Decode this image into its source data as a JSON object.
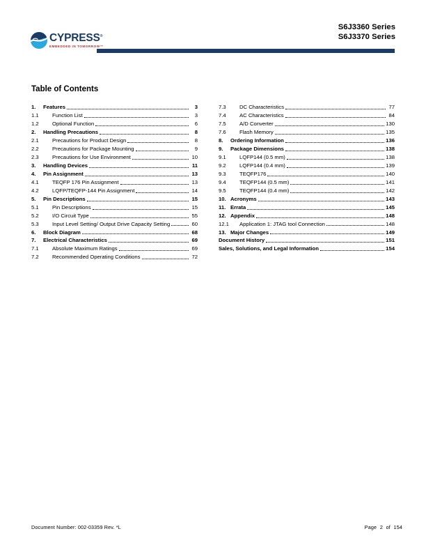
{
  "header": {
    "logo": {
      "brand": "CYPRESS",
      "registered": "®",
      "tagline": "EMBEDDED IN TOMORROW™"
    },
    "series": [
      "S6J3360 Series",
      "S6J3370 Series"
    ]
  },
  "title": "Table of Contents",
  "toc": {
    "left": [
      {
        "num": "1.",
        "label": "Features",
        "page": "3",
        "bold": true
      },
      {
        "num": "1.1",
        "label": "Function List",
        "page": "3",
        "sub": true
      },
      {
        "num": "1.2",
        "label": "Optional Function",
        "page": "6",
        "sub": true
      },
      {
        "num": "2.",
        "label": "Handling Precautions",
        "page": "8",
        "bold": true
      },
      {
        "num": "2.1",
        "label": "Precautions for Product Design",
        "page": "8",
        "sub": true
      },
      {
        "num": "2.2",
        "label": "Precautions for Package Mounting",
        "page": "9",
        "sub": true
      },
      {
        "num": "2.3",
        "label": "Precautions for Use Environment",
        "page": "10",
        "sub": true
      },
      {
        "num": "3.",
        "label": "Handling Devices",
        "page": "11",
        "bold": true
      },
      {
        "num": "4.",
        "label": "Pin Assignment",
        "page": "13",
        "bold": true
      },
      {
        "num": "4.1",
        "label": "TEQFP 176 Pin Assignment",
        "page": "13",
        "sub": true
      },
      {
        "num": "4.2",
        "label": "LQFP/TEQFP-144 Pin Assignment",
        "page": "14",
        "sub": true
      },
      {
        "num": "5.",
        "label": "Pin Descriptions",
        "page": "15",
        "bold": true
      },
      {
        "num": "5.1",
        "label": "Pin Descriptions",
        "page": "15",
        "sub": true
      },
      {
        "num": "5.2",
        "label": "I/O Circuit Type",
        "page": "55",
        "sub": true
      },
      {
        "num": "5.3",
        "label": "Input Level Setting/ Output Drive Capacity Setting",
        "page": "60",
        "sub": true
      },
      {
        "num": "6.",
        "label": "Block Diagram",
        "page": "68",
        "bold": true
      },
      {
        "num": "7.",
        "label": "Electrical Characteristics",
        "page": "69",
        "bold": true
      },
      {
        "num": "7.1",
        "label": "Absolute Maximum Ratings",
        "page": "69",
        "sub": true
      },
      {
        "num": "7.2",
        "label": "Recommended Operating Conditions",
        "page": "72",
        "sub": true
      }
    ],
    "right": [
      {
        "num": "7.3",
        "label": "DC Characteristics",
        "page": "77",
        "sub": true
      },
      {
        "num": "7.4",
        "label": "AC Characteristics",
        "page": "84",
        "sub": true
      },
      {
        "num": "7.5",
        "label": "A/D Converter",
        "page": "130",
        "sub": true
      },
      {
        "num": "7.6",
        "label": "Flash Memory",
        "page": "135",
        "sub": true
      },
      {
        "num": "8.",
        "label": "Ordering Information",
        "page": "136",
        "bold": true
      },
      {
        "num": "9.",
        "label": "Package Dimensions",
        "page": "138",
        "bold": true
      },
      {
        "num": "9.1",
        "label": "LQFP144 (0.5 mm)",
        "page": "138",
        "sub": true
      },
      {
        "num": "9.2",
        "label": "LQFP144 (0.4 mm)",
        "page": "139",
        "sub": true
      },
      {
        "num": "9.3",
        "label": "TEQFP176",
        "page": "140",
        "sub": true
      },
      {
        "num": "9.4",
        "label": "TEQFP144 (0.5 mm)",
        "page": "141",
        "sub": true
      },
      {
        "num": "9.5",
        "label": "TEQFP144 (0.4 mm)",
        "page": "142",
        "sub": true
      },
      {
        "num": "10.",
        "label": "Acronyms",
        "page": "143",
        "bold": true
      },
      {
        "num": "11.",
        "label": "Errata",
        "page": "145",
        "bold": true
      },
      {
        "num": "12.",
        "label": "Appendix",
        "page": "148",
        "bold": true
      },
      {
        "num": "12.1",
        "label": "Application 1: JTAG tool Connection",
        "page": "148",
        "sub": true
      },
      {
        "num": "13.",
        "label": "Major Changes",
        "page": "149",
        "bold": true
      },
      {
        "num": "",
        "label": "Document History",
        "page": "151",
        "bold": true
      },
      {
        "num": "",
        "label": "Sales, Solutions, and Legal Information",
        "page": "154",
        "bold": true
      }
    ]
  },
  "footer": {
    "doc_label": "Document Number:",
    "doc_number": "002-03359 Rev. *L",
    "page_text": "Page 2 of 154"
  },
  "colors": {
    "navy": "#1b3a66",
    "cyan": "#2aa9e0",
    "red": "#c2242b",
    "ink": "#000000"
  }
}
